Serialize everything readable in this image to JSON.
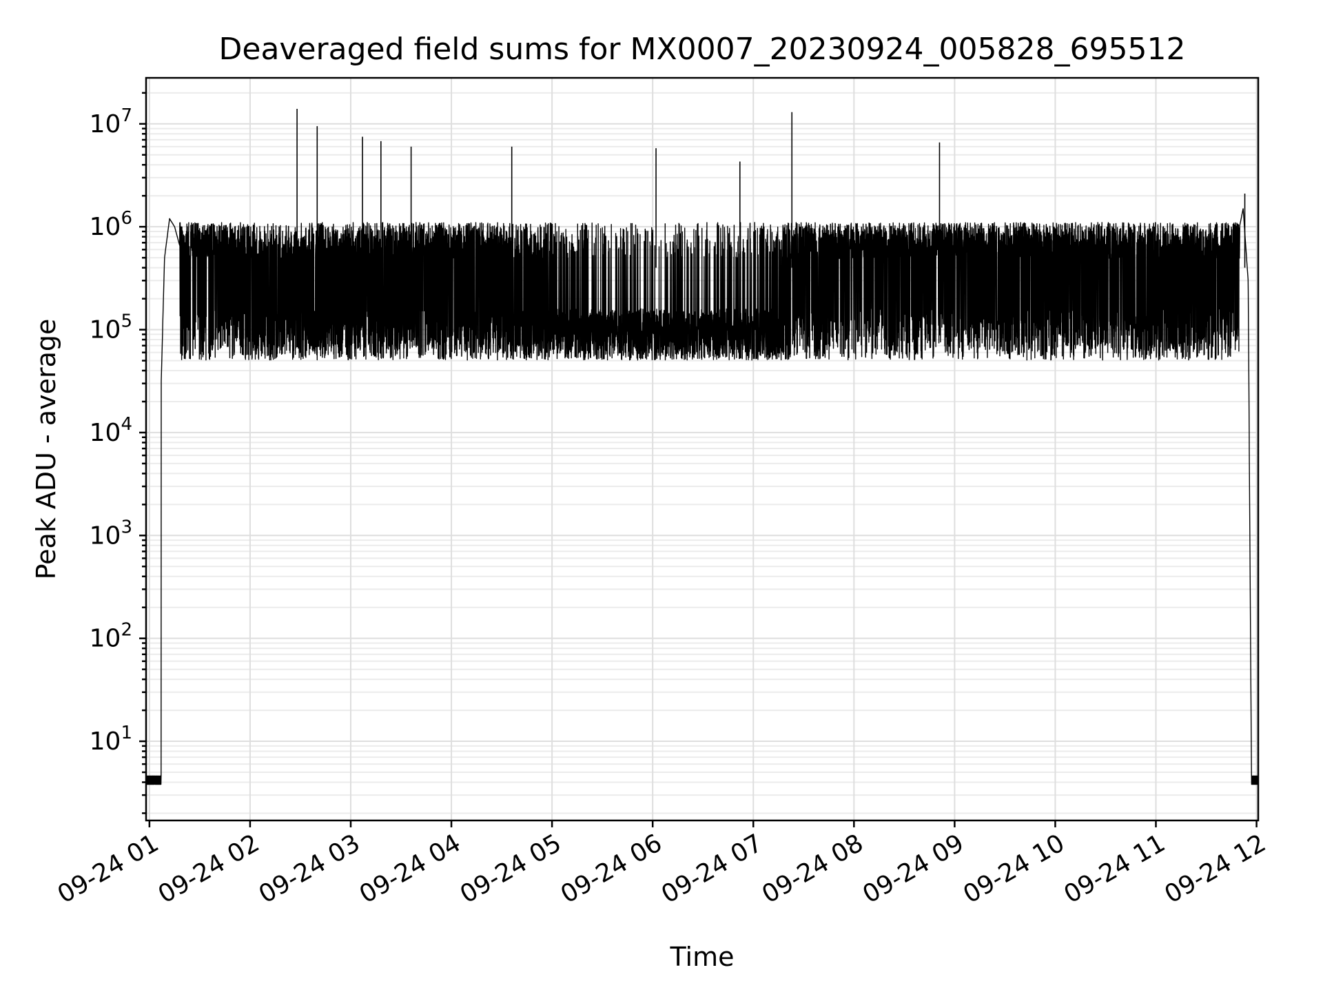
{
  "chart_data": {
    "type": "line",
    "title": "Deaveraged field sums for MX0007_20230924_005828_695512",
    "xlabel": "Time",
    "ylabel": "Peak ADU - average",
    "yscale": "log",
    "grid": true,
    "line_color": "#000000",
    "x_range": [
      "2023-09-24 00:58",
      "2023-09-24 12:01"
    ],
    "ylim": [
      1.7,
      28000000
    ],
    "x_ticks": [
      "09-24 01",
      "09-24 02",
      "09-24 03",
      "09-24 04",
      "09-24 05",
      "09-24 06",
      "09-24 07",
      "09-24 08",
      "09-24 09",
      "09-24 10",
      "09-24 11",
      "09-24 12"
    ],
    "y_ticks": [
      {
        "value": 10,
        "base": "10",
        "exp": "1"
      },
      {
        "value": 100,
        "base": "10",
        "exp": "2"
      },
      {
        "value": 1000,
        "base": "10",
        "exp": "3"
      },
      {
        "value": 10000,
        "base": "10",
        "exp": "4"
      },
      {
        "value": 100000,
        "base": "10",
        "exp": "5"
      },
      {
        "value": 1000000,
        "base": "10",
        "exp": "6"
      },
      {
        "value": 10000000,
        "base": "10",
        "exp": "7"
      }
    ],
    "series": [
      {
        "x": [
          "2023-09-24 00:58",
          "2023-09-24 01:05",
          "2023-09-24 01:07",
          "2023-09-24 01:09",
          "2023-09-24 01:12",
          "2023-09-24 01:15",
          "2023-09-24 01:20",
          "2023-09-24 01:30",
          "2023-09-24 01:45",
          "2023-09-24 02:00",
          "2023-09-24 02:15",
          "2023-09-24 02:30",
          "2023-09-24 02:45",
          "2023-09-24 03:00",
          "2023-09-24 03:30",
          "2023-09-24 04:00",
          "2023-09-24 04:30",
          "2023-09-24 05:00",
          "2023-09-24 05:30",
          "2023-09-24 06:00",
          "2023-09-24 06:30",
          "2023-09-24 07:00",
          "2023-09-24 07:30",
          "2023-09-24 08:00",
          "2023-09-24 08:30",
          "2023-09-24 09:00",
          "2023-09-24 09:30",
          "2023-09-24 10:00",
          "2023-09-24 10:30",
          "2023-09-24 11:00",
          "2023-09-24 11:30",
          "2023-09-24 11:45",
          "2023-09-24 11:52",
          "2023-09-24 11:55",
          "2023-09-24 11:57",
          "2023-09-24 12:01"
        ],
        "y": [
          4,
          4,
          30000,
          500000,
          1200000,
          1000000,
          500000,
          600000,
          450000,
          300000,
          250000,
          300000,
          350000,
          300000,
          400000,
          450000,
          350000,
          200000,
          150000,
          130000,
          140000,
          150000,
          400000,
          600000,
          550000,
          500000,
          450000,
          450000,
          400000,
          350000,
          400000,
          400000,
          1500000,
          300000,
          4,
          4
        ]
      }
    ],
    "spikes": [
      {
        "x": "2023-09-24 02:28",
        "y": 14000000
      },
      {
        "x": "2023-09-24 02:40",
        "y": 9500000
      },
      {
        "x": "2023-09-24 03:07",
        "y": 7500000
      },
      {
        "x": "2023-09-24 03:18",
        "y": 6800000
      },
      {
        "x": "2023-09-24 03:36",
        "y": 6000000
      },
      {
        "x": "2023-09-24 04:36",
        "y": 6000000
      },
      {
        "x": "2023-09-24 06:02",
        "y": 5800000
      },
      {
        "x": "2023-09-24 06:52",
        "y": 4300000
      },
      {
        "x": "2023-09-24 07:23",
        "y": 13000000
      },
      {
        "x": "2023-09-24 08:51",
        "y": 6600000
      },
      {
        "x": "2023-09-24 11:53",
        "y": 2100000
      }
    ]
  }
}
